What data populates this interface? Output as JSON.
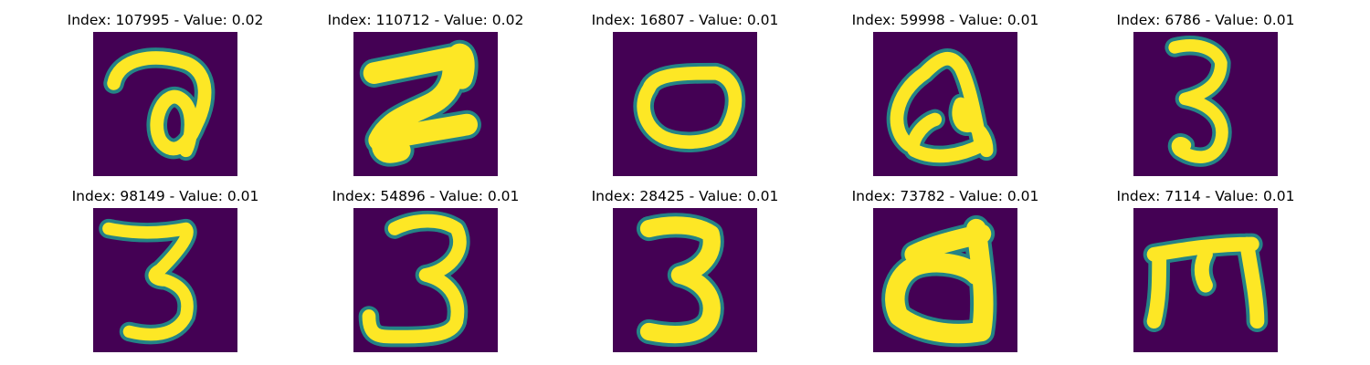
{
  "colors": {
    "background": "#440154",
    "stroke": "#fde725",
    "edge": "#21918c"
  },
  "panels": [
    {
      "index": "107995",
      "value": "0.02",
      "title": "Index: 107995 - Value: 0.02",
      "glyph": "fancy-2"
    },
    {
      "index": "110712",
      "value": "0.02",
      "title": "Index: 110712 - Value: 0.02",
      "glyph": "z-shape"
    },
    {
      "index": "16807",
      "value": "0.01",
      "title": "Index: 16807 - Value: 0.01",
      "glyph": "zero"
    },
    {
      "index": "59998",
      "value": "0.01",
      "title": "Index: 59998 - Value: 0.01",
      "glyph": "fancy-a"
    },
    {
      "index": "6786",
      "value": "0.01",
      "title": "Index: 6786 - Value: 0.01",
      "glyph": "three"
    },
    {
      "index": "98149",
      "value": "0.01",
      "title": "Index: 98149 - Value: 0.01",
      "glyph": "three-flat"
    },
    {
      "index": "54896",
      "value": "0.01",
      "title": "Index: 54896 - Value: 0.01",
      "glyph": "three-hook"
    },
    {
      "index": "28425",
      "value": "0.01",
      "title": "Index: 28425 - Value: 0.01",
      "glyph": "three-bold"
    },
    {
      "index": "73782",
      "value": "0.01",
      "title": "Index: 73782 - Value: 0.01",
      "glyph": "d-shape"
    },
    {
      "index": "7114",
      "value": "0.01",
      "title": "Index: 7114 - Value: 0.01",
      "glyph": "rotated-m"
    }
  ]
}
